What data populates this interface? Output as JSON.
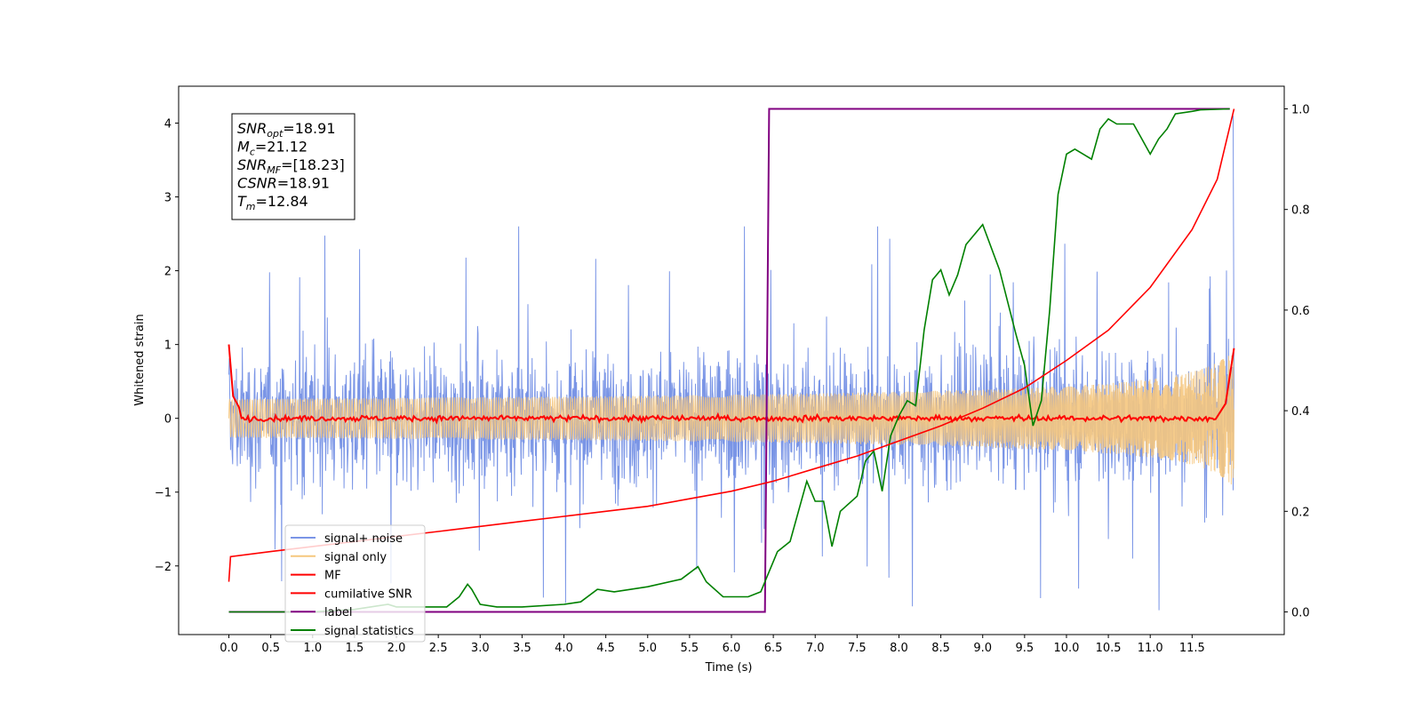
{
  "chart_data": {
    "type": "line",
    "xlabel": "Time (s)",
    "ylabel": "Whitened strain",
    "xlim": [
      -0.6,
      12.6
    ],
    "ylim": [
      -2.93,
      4.5
    ],
    "y2lim": [
      -0.045,
      1.045
    ],
    "x_ticks": [
      "0.0",
      "0.5",
      "1.0",
      "1.5",
      "2.0",
      "2.5",
      "3.0",
      "3.5",
      "4.0",
      "4.5",
      "5.0",
      "5.5",
      "6.0",
      "6.5",
      "7.0",
      "7.5",
      "8.0",
      "8.5",
      "9.0",
      "9.5",
      "10.0",
      "10.5",
      "11.0",
      "11.5"
    ],
    "y_ticks": [
      "−2",
      "−1",
      "0",
      "1",
      "2",
      "3",
      "4"
    ],
    "y2_ticks": [
      "0.0",
      "0.2",
      "0.4",
      "0.6",
      "0.8",
      "1.0"
    ],
    "info_box": [
      {
        "sym": "SNR",
        "sub": "opt",
        "text": "=18.91"
      },
      {
        "sym": "M",
        "sub": "c",
        "text": "=21.12"
      },
      {
        "sym": "SNR",
        "sub": "MF",
        "text": "=[18.23]"
      },
      {
        "sym": "CSNR",
        "sub": "",
        "text": "=18.91"
      },
      {
        "sym": "T",
        "sub": "m",
        "text": "=12.84"
      }
    ],
    "legend": {
      "placement": "lower-left",
      "entries": [
        {
          "label": "signal+ noise",
          "color": "#7a95e6"
        },
        {
          "label": "signal only",
          "color": "#f5c77e"
        },
        {
          "label": "MF",
          "color": "#ff0000"
        },
        {
          "label": "cumilative SNR",
          "color": "#ff0000"
        },
        {
          "label": "label",
          "color": "#800080"
        },
        {
          "label": "signal statistics",
          "color": "#008000"
        }
      ]
    },
    "series": [
      {
        "name": "label",
        "axis": "right",
        "color": "#800080",
        "x": [
          0.0,
          6.4,
          6.45,
          11.95
        ],
        "y": [
          0.0,
          0.0,
          1.0,
          1.0
        ]
      },
      {
        "name": "signal statistics",
        "axis": "right",
        "color": "#008000",
        "x": [
          0.0,
          0.5,
          1.0,
          1.5,
          1.9,
          2.0,
          2.3,
          2.6,
          2.75,
          2.85,
          2.9,
          3.0,
          3.2,
          3.5,
          4.0,
          4.2,
          4.4,
          4.6,
          5.0,
          5.4,
          5.6,
          5.7,
          5.9,
          6.0,
          6.2,
          6.35,
          6.45,
          6.55,
          6.7,
          6.9,
          7.0,
          7.1,
          7.2,
          7.3,
          7.5,
          7.6,
          7.7,
          7.8,
          7.9,
          8.0,
          8.1,
          8.2,
          8.3,
          8.4,
          8.5,
          8.6,
          8.7,
          8.8,
          9.0,
          9.2,
          9.4,
          9.5,
          9.6,
          9.7,
          9.8,
          9.9,
          10.0,
          10.1,
          10.2,
          10.3,
          10.4,
          10.5,
          10.6,
          10.8,
          10.9,
          11.0,
          11.1,
          11.2,
          11.3,
          11.5,
          11.6,
          11.8,
          11.95
        ],
        "y": [
          0.0,
          0.0,
          0.0,
          0.005,
          0.015,
          0.01,
          0.01,
          0.01,
          0.03,
          0.055,
          0.045,
          0.015,
          0.01,
          0.01,
          0.015,
          0.02,
          0.045,
          0.04,
          0.05,
          0.065,
          0.09,
          0.06,
          0.03,
          0.03,
          0.03,
          0.04,
          0.08,
          0.12,
          0.14,
          0.26,
          0.22,
          0.22,
          0.13,
          0.2,
          0.23,
          0.3,
          0.32,
          0.24,
          0.35,
          0.39,
          0.42,
          0.41,
          0.56,
          0.66,
          0.68,
          0.63,
          0.67,
          0.73,
          0.77,
          0.68,
          0.55,
          0.49,
          0.37,
          0.42,
          0.6,
          0.83,
          0.91,
          0.92,
          0.91,
          0.9,
          0.96,
          0.98,
          0.97,
          0.97,
          0.94,
          0.91,
          0.94,
          0.96,
          0.99,
          0.995,
          0.998,
          0.999,
          1.0
        ]
      },
      {
        "name": "cumilative SNR",
        "axis": "right",
        "color": "#ff0000",
        "x": [
          0.0,
          0.02,
          0.5,
          1.0,
          1.5,
          2.0,
          2.5,
          3.0,
          3.5,
          4.0,
          4.5,
          5.0,
          5.5,
          6.0,
          6.5,
          7.0,
          7.5,
          8.0,
          8.5,
          9.0,
          9.5,
          10.0,
          10.5,
          11.0,
          11.5,
          11.8,
          12.0
        ],
        "y": [
          0.06,
          0.11,
          0.12,
          0.13,
          0.14,
          0.15,
          0.16,
          0.17,
          0.18,
          0.19,
          0.2,
          0.21,
          0.225,
          0.24,
          0.26,
          0.285,
          0.31,
          0.34,
          0.37,
          0.405,
          0.445,
          0.5,
          0.56,
          0.645,
          0.76,
          0.86,
          1.0
        ]
      }
    ]
  }
}
